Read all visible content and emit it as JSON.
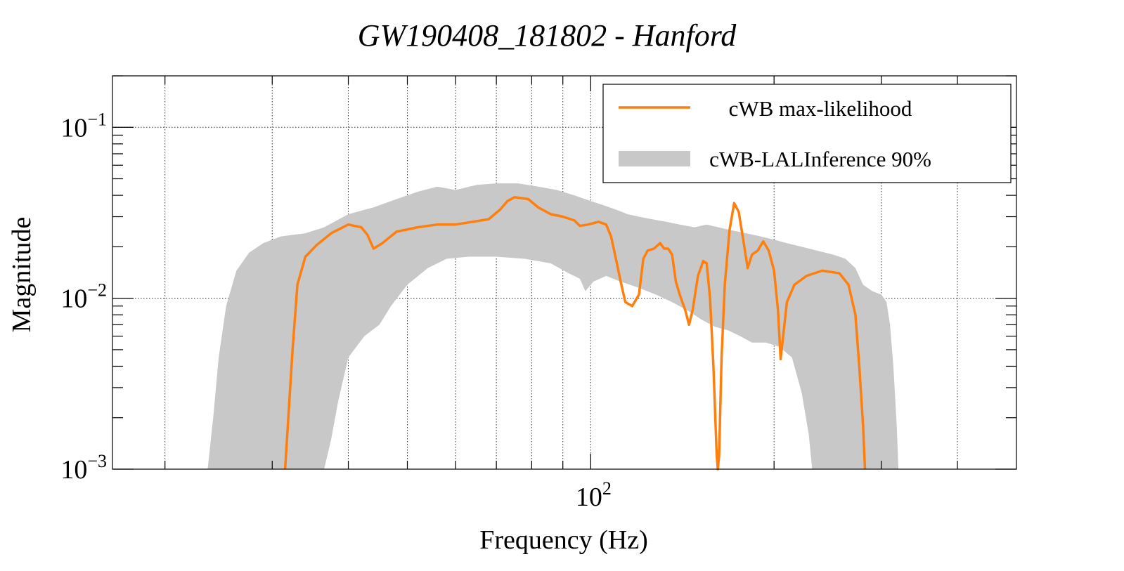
{
  "chart_data": {
    "type": "line",
    "title": "GW190408_181802 - Hanford",
    "xlabel": "Frequency (Hz)",
    "ylabel": "Magnitude",
    "x_scale": "log",
    "y_scale": "log",
    "xlim": [
      16.4,
      500
    ],
    "ylim": [
      0.001,
      0.2
    ],
    "x_ticks": [
      {
        "value": 100,
        "base": "10",
        "exp": "2"
      }
    ],
    "y_ticks": [
      {
        "value": 0.001,
        "base": "10",
        "exp": "−3"
      },
      {
        "value": 0.01,
        "base": "10",
        "exp": "−2"
      },
      {
        "value": 0.1,
        "base": "10",
        "exp": "−1"
      }
    ],
    "grid": true,
    "legend_position": "top-right",
    "series": [
      {
        "name": "cWB max-likelihood",
        "kind": "line",
        "color": "#ff7f0e",
        "points": [
          [
            31.5,
            0.001
          ],
          [
            32.4,
            0.005
          ],
          [
            33.0,
            0.012
          ],
          [
            34.0,
            0.0175
          ],
          [
            35.5,
            0.0205
          ],
          [
            37.5,
            0.024
          ],
          [
            40.0,
            0.027
          ],
          [
            42.0,
            0.026
          ],
          [
            43.0,
            0.0235
          ],
          [
            44.0,
            0.0195
          ],
          [
            45.5,
            0.021
          ],
          [
            48.0,
            0.0245
          ],
          [
            52.0,
            0.026
          ],
          [
            56.0,
            0.027
          ],
          [
            60.0,
            0.027
          ],
          [
            64.0,
            0.028
          ],
          [
            68.0,
            0.029
          ],
          [
            71.0,
            0.033
          ],
          [
            73.0,
            0.037
          ],
          [
            75.0,
            0.039
          ],
          [
            79.0,
            0.038
          ],
          [
            82.0,
            0.034
          ],
          [
            86.0,
            0.031
          ],
          [
            90.0,
            0.03
          ],
          [
            94.0,
            0.0285
          ],
          [
            96.0,
            0.0265
          ],
          [
            99.0,
            0.027
          ],
          [
            103.0,
            0.028
          ],
          [
            106.0,
            0.027
          ],
          [
            108.0,
            0.023
          ],
          [
            110.0,
            0.017
          ],
          [
            112.0,
            0.0125
          ],
          [
            114.0,
            0.0095
          ],
          [
            117.0,
            0.009
          ],
          [
            120.0,
            0.0105
          ],
          [
            122.0,
            0.017
          ],
          [
            124.0,
            0.019
          ],
          [
            127.0,
            0.0195
          ],
          [
            130.0,
            0.021
          ],
          [
            132.0,
            0.0195
          ],
          [
            134.0,
            0.0195
          ],
          [
            136.0,
            0.018
          ],
          [
            138.0,
            0.0125
          ],
          [
            140.0,
            0.0105
          ],
          [
            143.0,
            0.0085
          ],
          [
            145.0,
            0.007
          ],
          [
            147.0,
            0.0085
          ],
          [
            150.0,
            0.0135
          ],
          [
            153.0,
            0.0165
          ],
          [
            155.0,
            0.016
          ],
          [
            157.0,
            0.01
          ],
          [
            159.0,
            0.004
          ],
          [
            161.0,
            0.0012
          ],
          [
            161.7,
            0.001
          ],
          [
            162.5,
            0.0012
          ],
          [
            164.0,
            0.0045
          ],
          [
            166.0,
            0.012
          ],
          [
            169.0,
            0.025
          ],
          [
            172.0,
            0.036
          ],
          [
            175.0,
            0.032
          ],
          [
            178.0,
            0.022
          ],
          [
            181.0,
            0.015
          ],
          [
            184.0,
            0.018
          ],
          [
            188.0,
            0.019
          ],
          [
            192.0,
            0.0215
          ],
          [
            196.0,
            0.019
          ],
          [
            200.0,
            0.0145
          ],
          [
            203.0,
            0.0085
          ],
          [
            205.0,
            0.0044
          ],
          [
            207.0,
            0.006
          ],
          [
            210.0,
            0.0095
          ],
          [
            216.0,
            0.012
          ],
          [
            226.0,
            0.0135
          ],
          [
            240.0,
            0.0145
          ],
          [
            256.0,
            0.014
          ],
          [
            265.0,
            0.012
          ],
          [
            272.0,
            0.008
          ],
          [
            276.0,
            0.004
          ],
          [
            280.0,
            0.0018
          ],
          [
            282.0,
            0.001
          ]
        ]
      },
      {
        "name": "cWB-LALInference 90%",
        "kind": "band",
        "color": "#c8c8c8",
        "upper": [
          [
            23.5,
            0.001
          ],
          [
            24.0,
            0.002
          ],
          [
            24.5,
            0.0045
          ],
          [
            25.2,
            0.009
          ],
          [
            26.2,
            0.0145
          ],
          [
            27.5,
            0.0185
          ],
          [
            29.0,
            0.021
          ],
          [
            31.0,
            0.023
          ],
          [
            34.0,
            0.024
          ],
          [
            36.5,
            0.026
          ],
          [
            40.0,
            0.031
          ],
          [
            44.0,
            0.034
          ],
          [
            48.0,
            0.038
          ],
          [
            52.0,
            0.042
          ],
          [
            56.0,
            0.045
          ],
          [
            60.0,
            0.043
          ],
          [
            65.0,
            0.046
          ],
          [
            70.0,
            0.047
          ],
          [
            76.0,
            0.047
          ],
          [
            82.0,
            0.045
          ],
          [
            88.0,
            0.043
          ],
          [
            94.0,
            0.04
          ],
          [
            100.0,
            0.037
          ],
          [
            105.0,
            0.035
          ],
          [
            110.0,
            0.033
          ],
          [
            115.0,
            0.031
          ],
          [
            120.0,
            0.03
          ],
          [
            126.0,
            0.029
          ],
          [
            133.0,
            0.028
          ],
          [
            140.0,
            0.027
          ],
          [
            148.0,
            0.026
          ],
          [
            155.0,
            0.027
          ],
          [
            162.0,
            0.026
          ],
          [
            170.0,
            0.025
          ],
          [
            180.0,
            0.024
          ],
          [
            190.0,
            0.023
          ],
          [
            200.0,
            0.022
          ],
          [
            210.0,
            0.021
          ],
          [
            222.0,
            0.02
          ],
          [
            235.0,
            0.019
          ],
          [
            250.0,
            0.018
          ],
          [
            262.0,
            0.017
          ],
          [
            272.0,
            0.015
          ],
          [
            280.0,
            0.012
          ],
          [
            290.0,
            0.011
          ],
          [
            300.0,
            0.0105
          ],
          [
            306.0,
            0.0095
          ],
          [
            310.0,
            0.007
          ],
          [
            314.0,
            0.004
          ],
          [
            318.0,
            0.0018
          ],
          [
            320.0,
            0.001
          ]
        ],
        "lower": [
          [
            36.5,
            0.001
          ],
          [
            37.5,
            0.0015
          ],
          [
            38.5,
            0.0025
          ],
          [
            40.0,
            0.0045
          ],
          [
            42.5,
            0.006
          ],
          [
            45.0,
            0.007
          ],
          [
            47.0,
            0.009
          ],
          [
            50.0,
            0.012
          ],
          [
            54.0,
            0.015
          ],
          [
            58.0,
            0.017
          ],
          [
            63.0,
            0.0175
          ],
          [
            70.0,
            0.0175
          ],
          [
            78.0,
            0.017
          ],
          [
            86.0,
            0.016
          ],
          [
            92.0,
            0.014
          ],
          [
            96.0,
            0.013
          ],
          [
            98.0,
            0.011
          ],
          [
            101.0,
            0.0125
          ],
          [
            106.0,
            0.0135
          ],
          [
            112.0,
            0.0125
          ],
          [
            120.0,
            0.0115
          ],
          [
            128.0,
            0.0105
          ],
          [
            136.0,
            0.0095
          ],
          [
            144.0,
            0.0085
          ],
          [
            152.0,
            0.0075
          ],
          [
            160.0,
            0.0068
          ],
          [
            168.0,
            0.0065
          ],
          [
            176.0,
            0.006
          ],
          [
            184.0,
            0.0055
          ],
          [
            194.0,
            0.0055
          ],
          [
            204.0,
            0.0052
          ],
          [
            214.0,
            0.0045
          ],
          [
            222.0,
            0.0028
          ],
          [
            228.0,
            0.0016
          ],
          [
            231.0,
            0.001
          ]
        ]
      }
    ]
  }
}
